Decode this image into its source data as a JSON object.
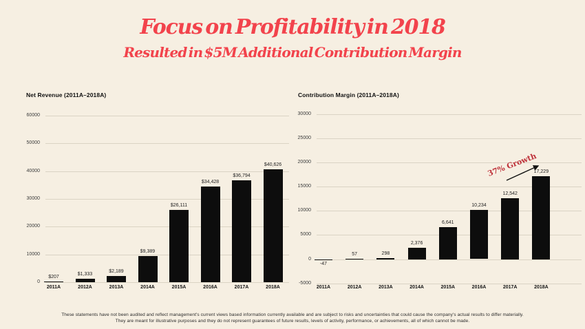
{
  "slide": {
    "title": "Focus on Profitability in 2018",
    "subtitle": "Resulted in $5M Additional Contribution Margin",
    "footer_line1": "These statements have not been audited and reflect management's current views based information currently available and are subject to risks and uncertainties that could cause the company's actual results to differ materially.",
    "footer_line2": "They are meant for illustrative purposes and they do not represent guarantees of future results, levels of activity, performance, or achievements, all of which cannot be made."
  },
  "colors": {
    "background": "#F6EFE2",
    "title_red": "#F2434C",
    "annotation_red": "#BE3139",
    "bar_black": "#0D0D0D",
    "gridline": "#DAD3C4"
  },
  "chart_data": [
    {
      "type": "bar",
      "title": "Net Revenue (2011A–2018A)",
      "categories": [
        "2011A",
        "2012A",
        "2013A",
        "2014A",
        "2015A",
        "2016A",
        "2017A",
        "2018A"
      ],
      "values": [
        207,
        1333,
        2189,
        9389,
        26111,
        34428,
        36794,
        40626
      ],
      "value_labels": [
        "$207",
        "$1,333",
        "$2,189",
        "$9,389",
        "$26,111",
        "$34,428",
        "$36,794",
        "$40,626"
      ],
      "ylim": [
        0,
        60000
      ],
      "yticks": [
        0,
        10000,
        20000,
        30000,
        40000,
        50000,
        60000
      ],
      "ytick_labels": [
        "0",
        "10000",
        "20000",
        "30000",
        "40000",
        "50000",
        "60000"
      ],
      "grid": true,
      "legend": "none",
      "bar_color": "#0D0D0D"
    },
    {
      "type": "bar",
      "title": "Contribution Margin (2011A–2018A)",
      "categories": [
        "2011A",
        "2012A",
        "2013A",
        "2014A",
        "2015A",
        "2016A",
        "2017A",
        "2018A"
      ],
      "values": [
        -47,
        57,
        298,
        2376,
        6641,
        10234,
        12542,
        17229
      ],
      "value_labels": [
        "-47",
        "57",
        "298",
        "2,376",
        "6,641",
        "10,234",
        "12,542",
        "17,229"
      ],
      "ylim": [
        -5000,
        30000
      ],
      "yticks": [
        -5000,
        0,
        5000,
        10000,
        15000,
        20000,
        25000,
        30000
      ],
      "ytick_labels": [
        "-5000",
        "0",
        "5000",
        "10000",
        "15000",
        "20000",
        "25000",
        "30000"
      ],
      "grid": true,
      "legend": "none",
      "bar_color": "#0D0D0D",
      "annotation": "37% Growth"
    }
  ]
}
